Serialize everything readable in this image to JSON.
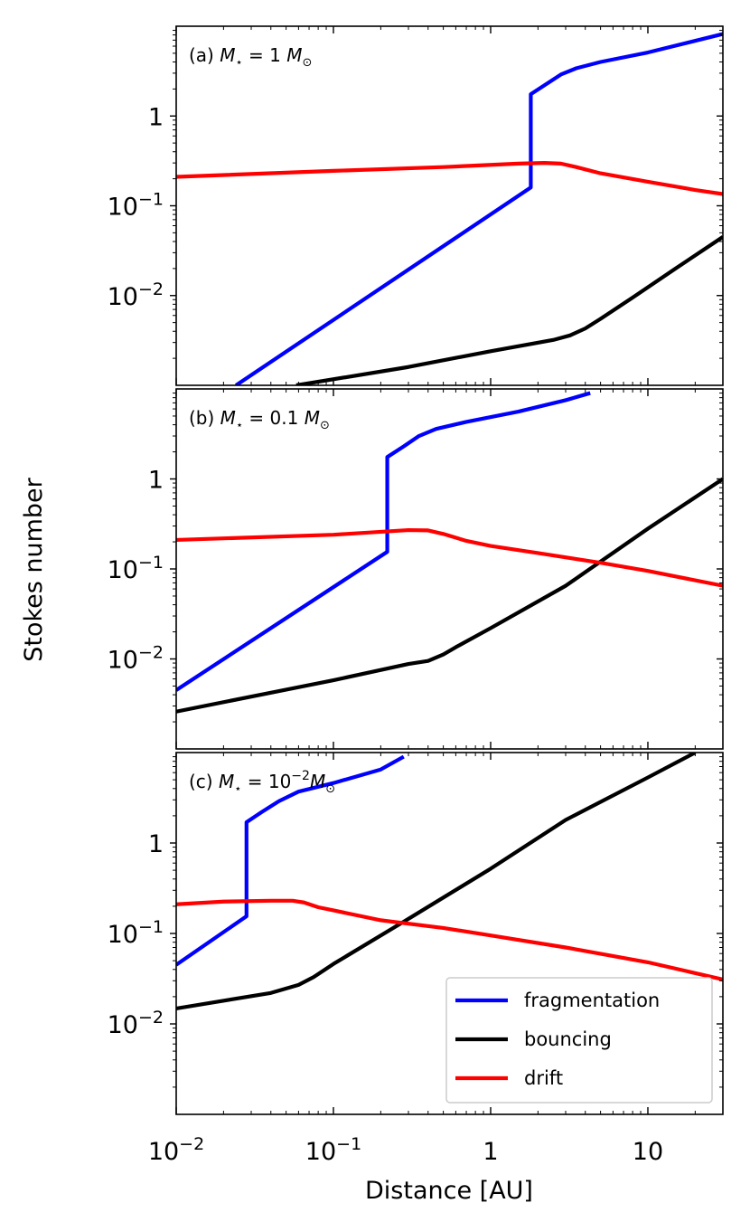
{
  "chart_data": {
    "type": "line",
    "xlabel": "Distance [AU]",
    "ylabel": "Stokes number",
    "xscale": "log",
    "yscale": "log",
    "xlim": [
      0.01,
      30
    ],
    "ylim": [
      0.001,
      10
    ],
    "x_ticks": [
      {
        "value": 0.01,
        "base": "10",
        "exp": "−2"
      },
      {
        "value": 0.1,
        "base": "10",
        "exp": "−1"
      },
      {
        "value": 1,
        "base": "1",
        "exp": ""
      },
      {
        "value": 10,
        "base": "10",
        "exp": ""
      }
    ],
    "y_ticks": [
      {
        "value": 1,
        "base": "1",
        "exp": ""
      },
      {
        "value": 0.1,
        "base": "10",
        "exp": "−1"
      },
      {
        "value": 0.01,
        "base": "10",
        "exp": "−2"
      }
    ],
    "legend": {
      "location": "lower right",
      "panel": 2,
      "entries": [
        {
          "label": "fragmentation",
          "color": "#0000ff"
        },
        {
          "label": "bouncing",
          "color": "#000000"
        },
        {
          "label": "drift",
          "color": "#ff0000"
        }
      ]
    },
    "panels": [
      {
        "label_prefix": "(a)",
        "label_star": "M",
        "label_eq": " = 1 ",
        "label_exp": "",
        "label_unit": "M",
        "series": [
          {
            "name": "fragmentation",
            "color": "#0000ff",
            "x": [
              0.024,
              1.8,
              1.8,
              2.2,
              2.8,
              3.5,
              5,
              10,
              30
            ],
            "y": [
              0.001,
              0.16,
              1.75,
              2.2,
              2.9,
              3.4,
              4.0,
              5.1,
              8.2
            ]
          },
          {
            "name": "bouncing",
            "color": "#000000",
            "x": [
              0.058,
              0.3,
              1,
              2.5,
              3.2,
              4,
              5,
              6,
              8,
              15,
              30
            ],
            "y": [
              0.001,
              0.0016,
              0.0024,
              0.0032,
              0.0036,
              0.0043,
              0.0055,
              0.0068,
              0.0095,
              0.02,
              0.045
            ]
          },
          {
            "name": "drift",
            "color": "#ff0000",
            "x": [
              0.01,
              0.1,
              0.5,
              1.5,
              2.2,
              2.8,
              3.5,
              5,
              10,
              20,
              30
            ],
            "y": [
              0.21,
              0.245,
              0.27,
              0.295,
              0.3,
              0.295,
              0.27,
              0.23,
              0.185,
              0.15,
              0.135
            ]
          }
        ]
      },
      {
        "label_prefix": "(b)",
        "label_star": "M",
        "label_eq": " = 0.1 ",
        "label_exp": "",
        "label_unit": "M",
        "series": [
          {
            "name": "fragmentation",
            "color": "#0000ff",
            "x": [
              0.01,
              0.22,
              0.22,
              0.28,
              0.35,
              0.45,
              0.7,
              1.5,
              3,
              4.3
            ],
            "y": [
              0.0045,
              0.155,
              1.75,
              2.3,
              3.0,
              3.6,
              4.3,
              5.6,
              7.5,
              9.0
            ]
          },
          {
            "name": "bouncing",
            "color": "#000000",
            "x": [
              0.01,
              0.1,
              0.3,
              0.4,
              0.5,
              0.6,
              1,
              3,
              10,
              30
            ],
            "y": [
              0.0026,
              0.0058,
              0.0088,
              0.0095,
              0.0112,
              0.0135,
              0.022,
              0.065,
              0.28,
              1.0
            ]
          },
          {
            "name": "drift",
            "color": "#ff0000",
            "x": [
              0.01,
              0.1,
              0.3,
              0.4,
              0.5,
              0.7,
              1,
              2,
              5,
              10,
              30
            ],
            "y": [
              0.21,
              0.24,
              0.27,
              0.268,
              0.245,
              0.205,
              0.18,
              0.15,
              0.117,
              0.095,
              0.065
            ]
          }
        ]
      },
      {
        "label_prefix": "(c)",
        "label_star": "M",
        "label_eq": " = 10",
        "label_exp": "−2",
        "label_unit": "M",
        "series": [
          {
            "name": "fragmentation",
            "color": "#0000ff",
            "x": [
              0.01,
              0.028,
              0.028,
              0.035,
              0.045,
              0.06,
              0.1,
              0.2,
              0.28
            ],
            "y": [
              0.045,
              0.155,
              1.7,
              2.2,
              2.9,
              3.7,
              4.6,
              6.5,
              9.0
            ]
          },
          {
            "name": "bouncing",
            "color": "#000000",
            "x": [
              0.01,
              0.04,
              0.06,
              0.075,
              0.1,
              0.3,
              1,
              3,
              10,
              20
            ],
            "y": [
              0.0148,
              0.022,
              0.027,
              0.033,
              0.046,
              0.145,
              0.52,
              1.8,
              5.3,
              10.0
            ]
          },
          {
            "name": "drift",
            "color": "#ff0000",
            "x": [
              0.01,
              0.02,
              0.04,
              0.055,
              0.065,
              0.08,
              0.1,
              0.2,
              0.5,
              1,
              3,
              10,
              30
            ],
            "y": [
              0.21,
              0.225,
              0.23,
              0.23,
              0.22,
              0.195,
              0.18,
              0.14,
              0.115,
              0.095,
              0.07,
              0.048,
              0.031
            ]
          }
        ]
      }
    ]
  }
}
